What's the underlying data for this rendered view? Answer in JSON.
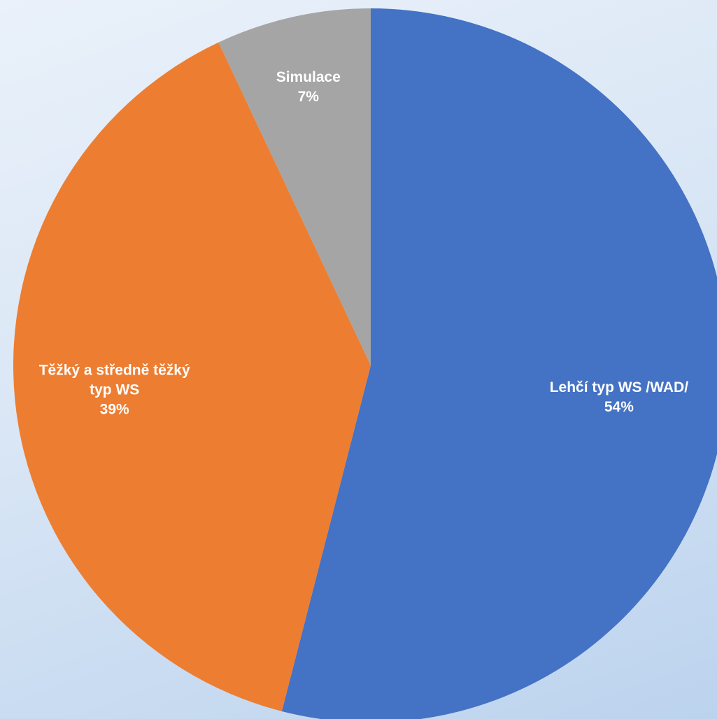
{
  "chart_data": {
    "type": "pie",
    "title": "",
    "start_angle_deg": 0,
    "direction": "clockwise",
    "slices": [
      {
        "label_lines": [
          "Lehčí typ WS /WAD/"
        ],
        "percent_label": "54%",
        "value": 54,
        "color": "#4472C4"
      },
      {
        "label_lines": [
          "Těžký a středně těžký",
          "typ WS"
        ],
        "percent_label": "39%",
        "value": 39,
        "color": "#ED7D31"
      },
      {
        "label_lines": [
          "Simulace"
        ],
        "percent_label": "7%",
        "value": 7,
        "color": "#A5A5A5"
      }
    ]
  }
}
